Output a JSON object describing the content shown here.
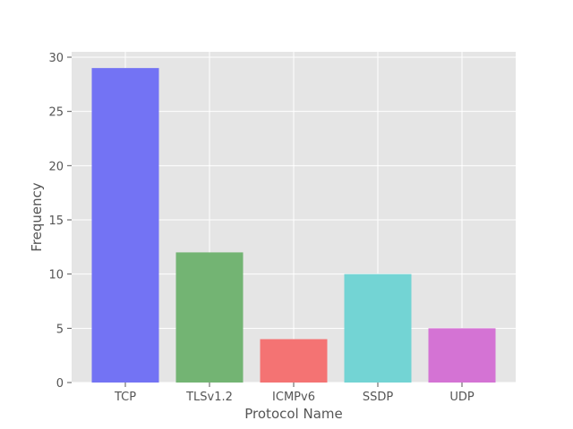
{
  "chart_data": {
    "type": "bar",
    "title": "",
    "xlabel": "Protocol Name",
    "ylabel": "Frequency",
    "categories": [
      "TCP",
      "TLSv1.2",
      "ICMPv6",
      "SSDP",
      "UDP"
    ],
    "values": [
      29,
      12,
      4,
      10,
      5
    ],
    "colors": [
      "#7373f4",
      "#73b473",
      "#f47373",
      "#73d4d4",
      "#d473d4"
    ],
    "ylim": [
      0,
      30
    ],
    "yticks": [
      0,
      5,
      10,
      15,
      20,
      25,
      30
    ],
    "grid": true,
    "background": "#e5e5e5",
    "grid_color": "#ffffff"
  }
}
